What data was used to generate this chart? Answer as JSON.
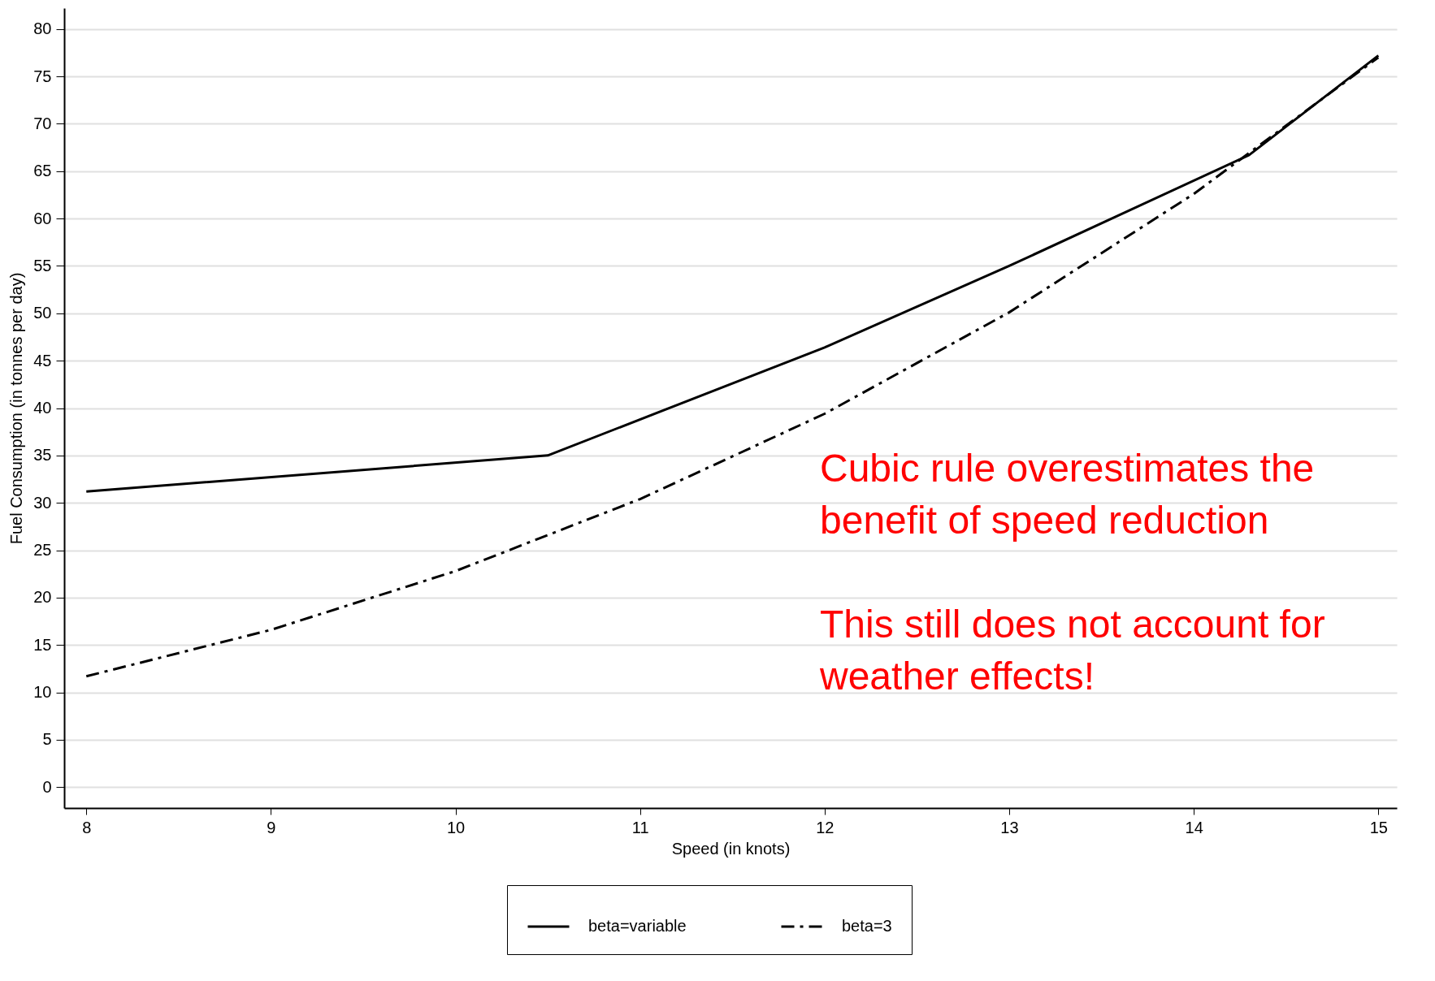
{
  "chart_data": {
    "type": "line",
    "xlabel": "Speed (in knots)",
    "ylabel": "Fuel Consumption (in tonnes per day)",
    "xlim": [
      7.88,
      15.1
    ],
    "ylim": [
      -2.2,
      82.2
    ],
    "xticks": [
      8,
      9,
      10,
      11,
      12,
      13,
      14,
      15
    ],
    "yticks": [
      0,
      5,
      10,
      15,
      20,
      25,
      30,
      35,
      40,
      45,
      50,
      55,
      60,
      65,
      70,
      75,
      80
    ],
    "grid": "y",
    "legend": "bottom",
    "marker": "none",
    "series": [
      {
        "name": "beta=variable",
        "color": "#000000",
        "line_style": "solid",
        "x": [
          8,
          10.5,
          12,
          13,
          14.3,
          15
        ],
        "values": [
          31.2,
          35.0,
          46.4,
          55.0,
          66.7,
          77.2
        ]
      },
      {
        "name": "beta=3",
        "color": "#000000",
        "line_style": "dashed",
        "x": [
          8,
          9,
          10,
          11,
          12,
          13,
          14,
          15
        ],
        "values": [
          11.7,
          16.6,
          22.8,
          30.4,
          39.4,
          50.1,
          62.6,
          77.0
        ]
      }
    ],
    "annotations": [
      "Cubic rule  overestimates the benefit of speed reduction",
      "This still does not account for weather effects!"
    ]
  }
}
